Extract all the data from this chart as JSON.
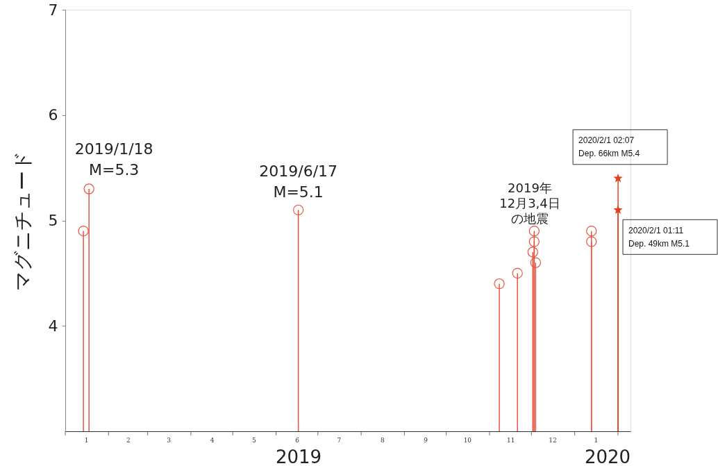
{
  "chart_data": {
    "type": "lollipop",
    "ylabel": "マグニチュード",
    "xlim": [
      "2019-01-01",
      "2020-02-10"
    ],
    "ylim": [
      3,
      7
    ],
    "yticks": [
      4,
      5,
      6,
      7
    ],
    "xticks": [
      {
        "value": "2019-01-01",
        "label": null
      },
      {
        "value": "2019-02-01",
        "label": null
      },
      {
        "value": "2019-03-01",
        "label": null
      },
      {
        "value": "2019-04-01",
        "label": null
      },
      {
        "value": "2019-05-01",
        "label": null
      },
      {
        "value": "2019-06-01",
        "label": null
      },
      {
        "value": "2019-07-01",
        "label": null
      },
      {
        "value": "2019-08-01",
        "label": null
      },
      {
        "value": "2019-09-01",
        "label": null
      },
      {
        "value": "2019-10-01",
        "label": null
      },
      {
        "value": "2019-11-01",
        "label": null
      },
      {
        "value": "2019-12-01",
        "label": null
      },
      {
        "value": "2020-01-01",
        "label": null
      },
      {
        "value": "2020-02-01",
        "label": null
      },
      {
        "value": "2019-01-16",
        "label": "1"
      },
      {
        "value": "2019-02-15",
        "label": "2"
      },
      {
        "value": "2019-03-16",
        "label": "3"
      },
      {
        "value": "2019-04-16",
        "label": "4"
      },
      {
        "value": "2019-05-16",
        "label": "5"
      },
      {
        "value": "2019-06-16",
        "label": "6"
      },
      {
        "value": "2019-07-16",
        "label": "7"
      },
      {
        "value": "2019-08-16",
        "label": "8"
      },
      {
        "value": "2019-09-16",
        "label": "9"
      },
      {
        "value": "2019-10-16",
        "label": "10"
      },
      {
        "value": "2019-11-16",
        "label": "11"
      },
      {
        "value": "2019-12-16",
        "label": "12"
      },
      {
        "value": "2020-01-16",
        "label": "1"
      }
    ],
    "series": [
      {
        "marker": "circle",
        "color": "#e8533f",
        "x": [
          "2019-01-14",
          "2019-01-18",
          "2019-06-17",
          "2019-11-08",
          "2019-11-21",
          "2019-12-03",
          "2019-12-03",
          "2019-12-02",
          "2019-12-04",
          "2020-01-13",
          "2020-01-13"
        ],
        "values": [
          4.9,
          5.3,
          5.1,
          4.4,
          4.5,
          4.9,
          4.8,
          4.7,
          4.6,
          4.9,
          4.8
        ]
      },
      {
        "marker": "star",
        "color": "#e2401c",
        "x": [
          "2020-02-01T01:11",
          "2020-02-01T02:07"
        ],
        "values": [
          5.1,
          5.4
        ]
      }
    ],
    "annotations": [
      {
        "text": "2019/1/18\nM=5.3",
        "x": "2019-01-18",
        "y": 5.3
      },
      {
        "text": "2019/6/17\nM=5.1",
        "x": "2019-06-17",
        "y": 5.1
      },
      "2019年",
      "12月3,4日",
      "の地震",
      {
        "text": "2020/2/1 02:07\nDep. 66km M5.4",
        "x": "2020-02-01T02:07",
        "y": 5.4
      },
      {
        "text": "2020/2/1 01:11\nDep. 49km M5.1",
        "x": "2020-02-01T01:11",
        "y": 5.1
      },
      "2019",
      "2020"
    ]
  }
}
